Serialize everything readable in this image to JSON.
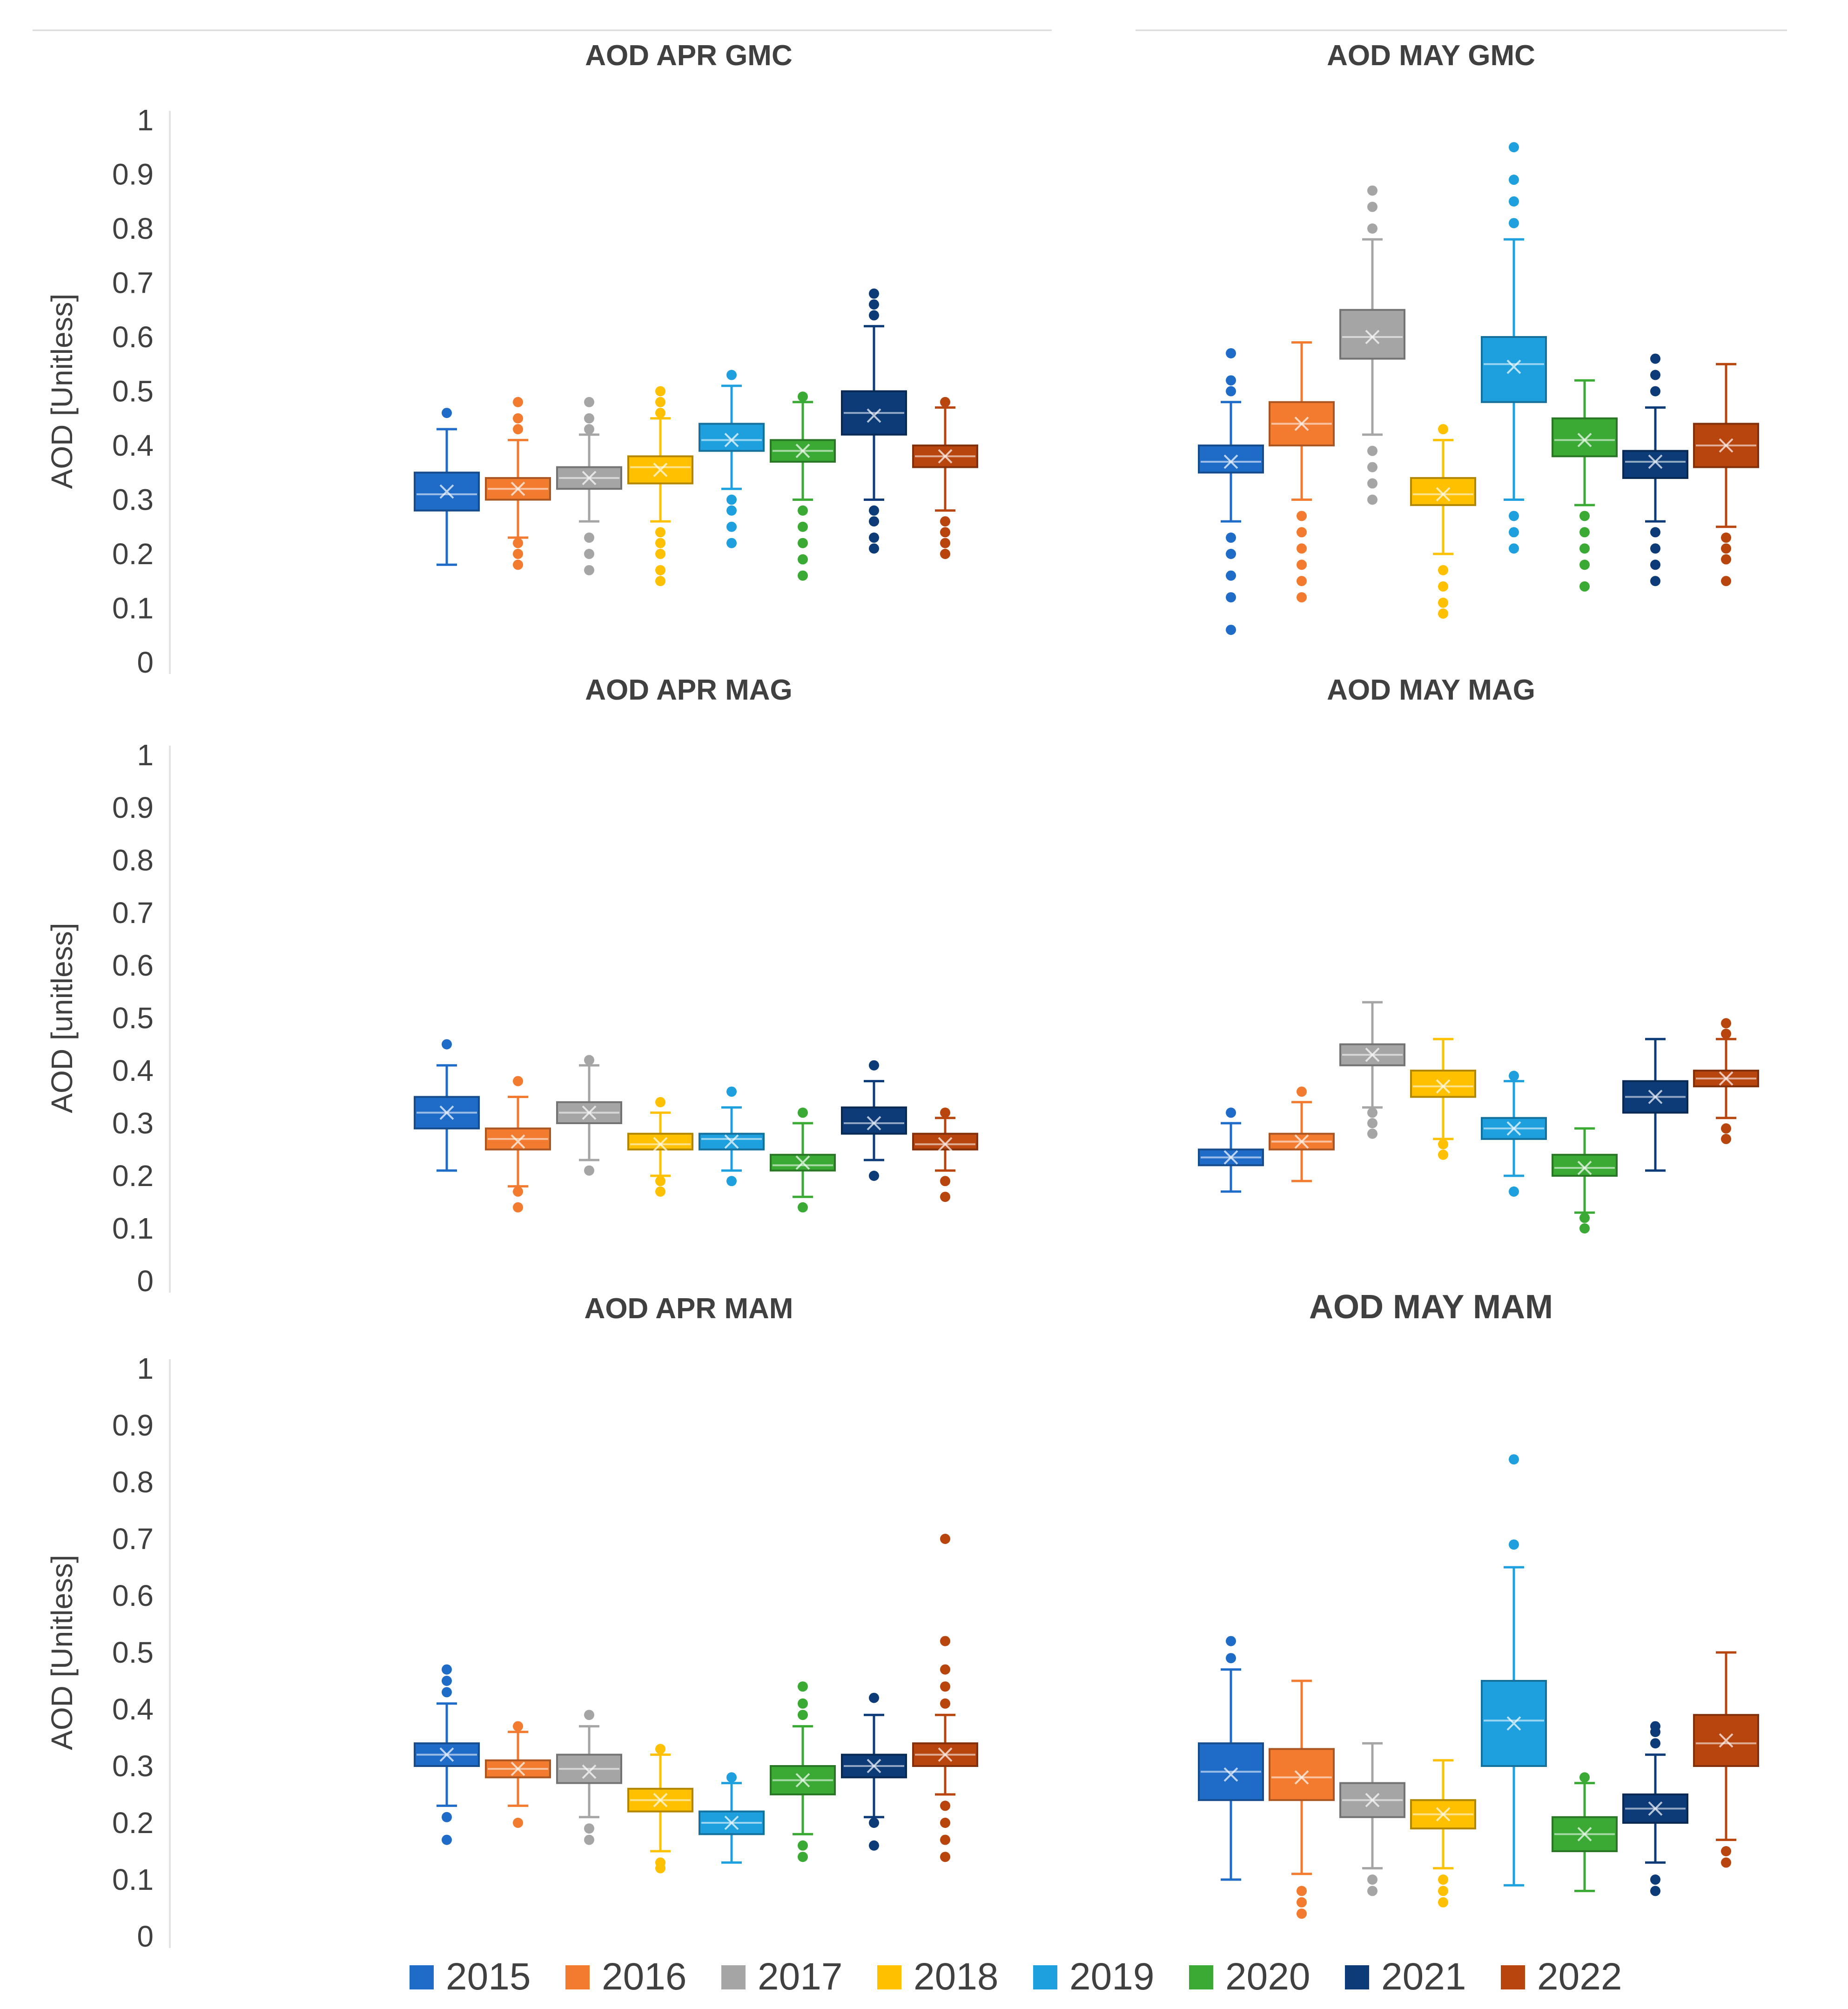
{
  "figure": {
    "legend": [
      {
        "label": "2015",
        "color": "#1f6cc8"
      },
      {
        "label": "2016",
        "color": "#f27b30"
      },
      {
        "label": "2017",
        "color": "#a5a5a5"
      },
      {
        "label": "2018",
        "color": "#ffc000"
      },
      {
        "label": "2019",
        "color": "#1ea0df"
      },
      {
        "label": "2020",
        "color": "#3aaa35"
      },
      {
        "label": "2021",
        "color": "#0c3b78"
      },
      {
        "label": "2022",
        "color": "#b8450e"
      }
    ],
    "y_tick_labels": [
      "0",
      "0.1",
      "0.2",
      "0.3",
      "0.4",
      "0.5",
      "0.6",
      "0.7",
      "0.8",
      "0.9",
      "1"
    ],
    "row_axis_labels": [
      "AOD [Unitless]",
      "AOD [unitless]",
      "AOD [Unitless]"
    ]
  },
  "chart_data": [
    {
      "type": "box",
      "title": "AOD APR GMC",
      "ylabel": "AOD [Unitless]",
      "ylim": [
        0,
        1
      ],
      "categories": [
        "2015",
        "2016",
        "2017",
        "2018",
        "2019",
        "2020",
        "2021",
        "2022"
      ],
      "boxes": [
        {
          "q1": 0.28,
          "median": 0.31,
          "q3": 0.35,
          "mean": 0.315,
          "whisker_low": 0.18,
          "whisker_high": 0.43,
          "outliers": [
            0.46
          ]
        },
        {
          "q1": 0.3,
          "median": 0.32,
          "q3": 0.34,
          "mean": 0.32,
          "whisker_low": 0.23,
          "whisker_high": 0.41,
          "outliers": [
            0.18,
            0.2,
            0.22,
            0.43,
            0.45,
            0.48
          ]
        },
        {
          "q1": 0.32,
          "median": 0.34,
          "q3": 0.36,
          "mean": 0.34,
          "whisker_low": 0.26,
          "whisker_high": 0.42,
          "outliers": [
            0.17,
            0.2,
            0.23,
            0.43,
            0.45,
            0.48
          ]
        },
        {
          "q1": 0.33,
          "median": 0.36,
          "q3": 0.38,
          "mean": 0.355,
          "whisker_low": 0.26,
          "whisker_high": 0.45,
          "outliers": [
            0.15,
            0.17,
            0.2,
            0.22,
            0.24,
            0.46,
            0.48,
            0.5
          ]
        },
        {
          "q1": 0.39,
          "median": 0.41,
          "q3": 0.44,
          "mean": 0.41,
          "whisker_low": 0.32,
          "whisker_high": 0.51,
          "outliers": [
            0.22,
            0.25,
            0.28,
            0.3,
            0.53
          ]
        },
        {
          "q1": 0.37,
          "median": 0.39,
          "q3": 0.41,
          "mean": 0.39,
          "whisker_low": 0.3,
          "whisker_high": 0.48,
          "outliers": [
            0.16,
            0.19,
            0.22,
            0.25,
            0.28,
            0.49
          ]
        },
        {
          "q1": 0.42,
          "median": 0.46,
          "q3": 0.5,
          "mean": 0.455,
          "whisker_low": 0.3,
          "whisker_high": 0.62,
          "outliers": [
            0.21,
            0.23,
            0.26,
            0.28,
            0.64,
            0.66,
            0.68
          ]
        },
        {
          "q1": 0.36,
          "median": 0.38,
          "q3": 0.4,
          "mean": 0.38,
          "whisker_low": 0.28,
          "whisker_high": 0.47,
          "outliers": [
            0.2,
            0.22,
            0.24,
            0.26,
            0.48
          ]
        }
      ]
    },
    {
      "type": "box",
      "title": "AOD  MAY GMC",
      "ylabel": "",
      "ylim": [
        0,
        1
      ],
      "categories": [
        "2015",
        "2016",
        "2017",
        "2018",
        "2019",
        "2020",
        "2021",
        "2022"
      ],
      "boxes": [
        {
          "q1": 0.35,
          "median": 0.37,
          "q3": 0.4,
          "mean": 0.37,
          "whisker_low": 0.26,
          "whisker_high": 0.48,
          "outliers": [
            0.06,
            0.12,
            0.16,
            0.2,
            0.23,
            0.5,
            0.52,
            0.57
          ]
        },
        {
          "q1": 0.4,
          "median": 0.44,
          "q3": 0.48,
          "mean": 0.44,
          "whisker_low": 0.3,
          "whisker_high": 0.59,
          "outliers": [
            0.12,
            0.15,
            0.18,
            0.21,
            0.24,
            0.27
          ]
        },
        {
          "q1": 0.56,
          "median": 0.6,
          "q3": 0.65,
          "mean": 0.6,
          "whisker_low": 0.42,
          "whisker_high": 0.78,
          "outliers": [
            0.3,
            0.33,
            0.36,
            0.39,
            0.8,
            0.84,
            0.87
          ]
        },
        {
          "q1": 0.29,
          "median": 0.31,
          "q3": 0.34,
          "mean": 0.31,
          "whisker_low": 0.2,
          "whisker_high": 0.41,
          "outliers": [
            0.09,
            0.11,
            0.14,
            0.17,
            0.43
          ]
        },
        {
          "q1": 0.48,
          "median": 0.55,
          "q3": 0.6,
          "mean": 0.545,
          "whisker_low": 0.3,
          "whisker_high": 0.78,
          "outliers": [
            0.21,
            0.24,
            0.27,
            0.81,
            0.85,
            0.89,
            0.95
          ]
        },
        {
          "q1": 0.38,
          "median": 0.41,
          "q3": 0.45,
          "mean": 0.41,
          "whisker_low": 0.29,
          "whisker_high": 0.52,
          "outliers": [
            0.14,
            0.18,
            0.21,
            0.24,
            0.27
          ]
        },
        {
          "q1": 0.34,
          "median": 0.37,
          "q3": 0.39,
          "mean": 0.37,
          "whisker_low": 0.26,
          "whisker_high": 0.47,
          "outliers": [
            0.15,
            0.18,
            0.21,
            0.24,
            0.5,
            0.53,
            0.56
          ]
        },
        {
          "q1": 0.36,
          "median": 0.4,
          "q3": 0.44,
          "mean": 0.4,
          "whisker_low": 0.25,
          "whisker_high": 0.55,
          "outliers": [
            0.15,
            0.19,
            0.21,
            0.23
          ]
        }
      ]
    },
    {
      "type": "box",
      "title": "AOD APR MAG",
      "ylabel": "AOD [unitless]",
      "ylim": [
        0,
        1
      ],
      "categories": [
        "2015",
        "2016",
        "2017",
        "2018",
        "2019",
        "2020",
        "2021",
        "2022"
      ],
      "boxes": [
        {
          "q1": 0.29,
          "median": 0.32,
          "q3": 0.35,
          "mean": 0.32,
          "whisker_low": 0.21,
          "whisker_high": 0.41,
          "outliers": [
            0.45
          ]
        },
        {
          "q1": 0.25,
          "median": 0.27,
          "q3": 0.29,
          "mean": 0.265,
          "whisker_low": 0.18,
          "whisker_high": 0.35,
          "outliers": [
            0.14,
            0.17,
            0.38
          ]
        },
        {
          "q1": 0.3,
          "median": 0.32,
          "q3": 0.34,
          "mean": 0.32,
          "whisker_low": 0.23,
          "whisker_high": 0.41,
          "outliers": [
            0.21,
            0.42
          ]
        },
        {
          "q1": 0.25,
          "median": 0.26,
          "q3": 0.28,
          "mean": 0.26,
          "whisker_low": 0.2,
          "whisker_high": 0.32,
          "outliers": [
            0.17,
            0.19,
            0.34
          ]
        },
        {
          "q1": 0.25,
          "median": 0.27,
          "q3": 0.28,
          "mean": 0.265,
          "whisker_low": 0.21,
          "whisker_high": 0.33,
          "outliers": [
            0.19,
            0.36
          ]
        },
        {
          "q1": 0.21,
          "median": 0.22,
          "q3": 0.24,
          "mean": 0.225,
          "whisker_low": 0.16,
          "whisker_high": 0.3,
          "outliers": [
            0.14,
            0.32
          ]
        },
        {
          "q1": 0.28,
          "median": 0.3,
          "q3": 0.33,
          "mean": 0.3,
          "whisker_low": 0.23,
          "whisker_high": 0.38,
          "outliers": [
            0.2,
            0.41
          ]
        },
        {
          "q1": 0.25,
          "median": 0.26,
          "q3": 0.28,
          "mean": 0.26,
          "whisker_low": 0.21,
          "whisker_high": 0.31,
          "outliers": [
            0.16,
            0.19,
            0.32
          ]
        }
      ]
    },
    {
      "type": "box",
      "title": "AOD MAY MAG",
      "ylabel": "",
      "ylim": [
        0,
        1
      ],
      "categories": [
        "2015",
        "2016",
        "2017",
        "2018",
        "2019",
        "2020",
        "2021",
        "2022"
      ],
      "boxes": [
        {
          "q1": 0.22,
          "median": 0.235,
          "q3": 0.25,
          "mean": 0.235,
          "whisker_low": 0.17,
          "whisker_high": 0.3,
          "outliers": [
            0.32
          ]
        },
        {
          "q1": 0.25,
          "median": 0.265,
          "q3": 0.28,
          "mean": 0.265,
          "whisker_low": 0.19,
          "whisker_high": 0.34,
          "outliers": [
            0.36
          ]
        },
        {
          "q1": 0.41,
          "median": 0.43,
          "q3": 0.45,
          "mean": 0.43,
          "whisker_low": 0.33,
          "whisker_high": 0.53,
          "outliers": [
            0.28,
            0.3,
            0.32
          ]
        },
        {
          "q1": 0.35,
          "median": 0.37,
          "q3": 0.4,
          "mean": 0.37,
          "whisker_low": 0.27,
          "whisker_high": 0.46,
          "outliers": [
            0.24,
            0.26
          ]
        },
        {
          "q1": 0.27,
          "median": 0.29,
          "q3": 0.31,
          "mean": 0.29,
          "whisker_low": 0.2,
          "whisker_high": 0.38,
          "outliers": [
            0.17,
            0.39
          ]
        },
        {
          "q1": 0.2,
          "median": 0.215,
          "q3": 0.24,
          "mean": 0.215,
          "whisker_low": 0.13,
          "whisker_high": 0.29,
          "outliers": [
            0.1,
            0.12
          ]
        },
        {
          "q1": 0.32,
          "median": 0.35,
          "q3": 0.38,
          "mean": 0.35,
          "whisker_low": 0.21,
          "whisker_high": 0.46,
          "outliers": []
        },
        {
          "q1": 0.37,
          "median": 0.385,
          "q3": 0.4,
          "mean": 0.385,
          "whisker_low": 0.31,
          "whisker_high": 0.46,
          "outliers": [
            0.27,
            0.29,
            0.47,
            0.49
          ]
        }
      ]
    },
    {
      "type": "box",
      "title": "AOD APR MAM",
      "ylabel": "AOD [Unitless]",
      "ylim": [
        0,
        1
      ],
      "categories": [
        "2015",
        "2016",
        "2017",
        "2018",
        "2019",
        "2020",
        "2021",
        "2022"
      ],
      "boxes": [
        {
          "q1": 0.3,
          "median": 0.32,
          "q3": 0.34,
          "mean": 0.32,
          "whisker_low": 0.23,
          "whisker_high": 0.41,
          "outliers": [
            0.17,
            0.21,
            0.43,
            0.45,
            0.47
          ]
        },
        {
          "q1": 0.28,
          "median": 0.295,
          "q3": 0.31,
          "mean": 0.295,
          "whisker_low": 0.23,
          "whisker_high": 0.36,
          "outliers": [
            0.2,
            0.37
          ]
        },
        {
          "q1": 0.27,
          "median": 0.295,
          "q3": 0.32,
          "mean": 0.29,
          "whisker_low": 0.21,
          "whisker_high": 0.37,
          "outliers": [
            0.17,
            0.19,
            0.39
          ]
        },
        {
          "q1": 0.22,
          "median": 0.24,
          "q3": 0.26,
          "mean": 0.24,
          "whisker_low": 0.15,
          "whisker_high": 0.32,
          "outliers": [
            0.12,
            0.13,
            0.33
          ]
        },
        {
          "q1": 0.18,
          "median": 0.2,
          "q3": 0.22,
          "mean": 0.2,
          "whisker_low": 0.13,
          "whisker_high": 0.27,
          "outliers": [
            0.28
          ]
        },
        {
          "q1": 0.25,
          "median": 0.275,
          "q3": 0.3,
          "mean": 0.275,
          "whisker_low": 0.18,
          "whisker_high": 0.37,
          "outliers": [
            0.14,
            0.16,
            0.39,
            0.41,
            0.44
          ]
        },
        {
          "q1": 0.28,
          "median": 0.3,
          "q3": 0.32,
          "mean": 0.3,
          "whisker_low": 0.21,
          "whisker_high": 0.39,
          "outliers": [
            0.16,
            0.2,
            0.42
          ]
        },
        {
          "q1": 0.3,
          "median": 0.32,
          "q3": 0.34,
          "mean": 0.32,
          "whisker_low": 0.25,
          "whisker_high": 0.39,
          "outliers": [
            0.14,
            0.17,
            0.2,
            0.23,
            0.41,
            0.44,
            0.47,
            0.52,
            0.7
          ]
        }
      ]
    },
    {
      "type": "box",
      "title": "AOD MAY MAM",
      "ylabel": "",
      "ylim": [
        0,
        1
      ],
      "categories": [
        "2015",
        "2016",
        "2017",
        "2018",
        "2019",
        "2020",
        "2021",
        "2022"
      ],
      "boxes": [
        {
          "q1": 0.24,
          "median": 0.29,
          "q3": 0.34,
          "mean": 0.285,
          "whisker_low": 0.1,
          "whisker_high": 0.47,
          "outliers": [
            0.49,
            0.52
          ]
        },
        {
          "q1": 0.24,
          "median": 0.28,
          "q3": 0.33,
          "mean": 0.28,
          "whisker_low": 0.11,
          "whisker_high": 0.45,
          "outliers": [
            0.04,
            0.06,
            0.08
          ]
        },
        {
          "q1": 0.21,
          "median": 0.24,
          "q3": 0.27,
          "mean": 0.24,
          "whisker_low": 0.12,
          "whisker_high": 0.34,
          "outliers": [
            0.08,
            0.1
          ]
        },
        {
          "q1": 0.19,
          "median": 0.215,
          "q3": 0.24,
          "mean": 0.215,
          "whisker_low": 0.12,
          "whisker_high": 0.31,
          "outliers": [
            0.06,
            0.08,
            0.1
          ]
        },
        {
          "q1": 0.3,
          "median": 0.38,
          "q3": 0.45,
          "mean": 0.375,
          "whisker_low": 0.09,
          "whisker_high": 0.65,
          "outliers": [
            0.69,
            0.84
          ]
        },
        {
          "q1": 0.15,
          "median": 0.18,
          "q3": 0.21,
          "mean": 0.18,
          "whisker_low": 0.08,
          "whisker_high": 0.27,
          "outliers": [
            0.28
          ]
        },
        {
          "q1": 0.2,
          "median": 0.225,
          "q3": 0.25,
          "mean": 0.225,
          "whisker_low": 0.13,
          "whisker_high": 0.32,
          "outliers": [
            0.08,
            0.1,
            0.34,
            0.36,
            0.37
          ]
        },
        {
          "q1": 0.3,
          "median": 0.34,
          "q3": 0.39,
          "mean": 0.345,
          "whisker_low": 0.17,
          "whisker_high": 0.5,
          "outliers": [
            0.13,
            0.15
          ]
        }
      ]
    }
  ]
}
